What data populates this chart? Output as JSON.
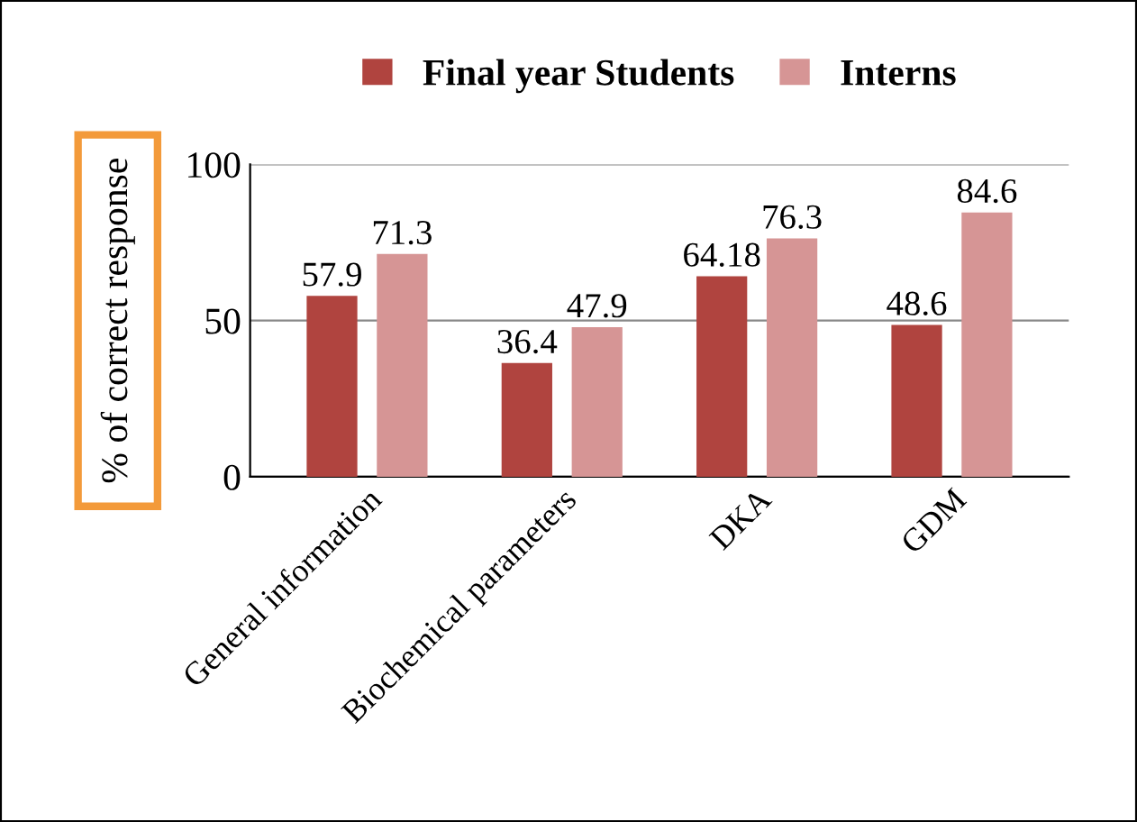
{
  "chart_data": {
    "type": "bar",
    "ylabel": "% of correct response",
    "categories": [
      "General information",
      "Biochemical parameters",
      "DKA",
      "GDM"
    ],
    "series": [
      {
        "name": "Final year Students",
        "color": "#b0443f",
        "values": [
          57.9,
          36.4,
          64.18,
          48.6
        ]
      },
      {
        "name": "Interns",
        "color": "#d69595",
        "values": [
          71.3,
          47.9,
          76.3,
          84.6
        ]
      }
    ],
    "ylim": [
      0,
      100
    ],
    "yticks": [
      0,
      50,
      100
    ],
    "grid": "y",
    "legend": "top",
    "data_labels": true
  }
}
